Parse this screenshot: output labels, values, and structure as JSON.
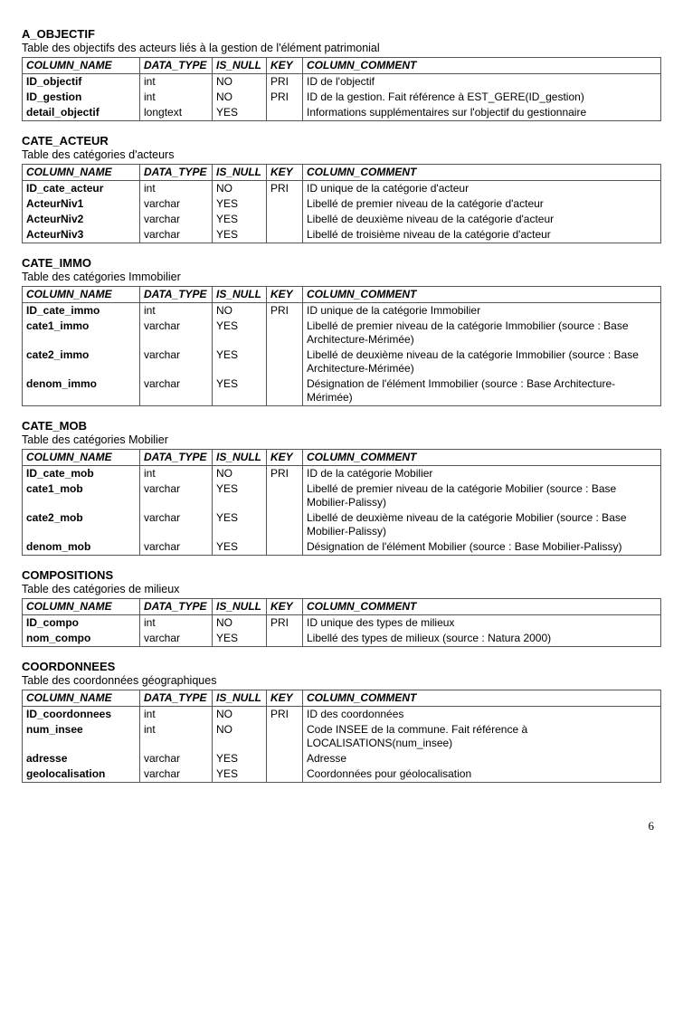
{
  "headers": {
    "col1": "COLUMN_NAME",
    "col2": "DATA_TYPE",
    "col3": "IS_NULL",
    "col4": "KEY",
    "col5": "COLUMN_COMMENT"
  },
  "sections": [
    {
      "title": "A_OBJECTIF",
      "desc": "Table des objectifs des acteurs liés à la gestion de l'élément patrimonial",
      "rows": [
        {
          "name": "ID_objectif",
          "type": "int",
          "isnull": "NO",
          "key": "PRI",
          "comment": "ID de l'objectif"
        },
        {
          "name": "ID_gestion",
          "type": "int",
          "isnull": "NO",
          "key": "PRI",
          "comment": "ID de la gestion. Fait référence à EST_GERE(ID_gestion)"
        },
        {
          "name": "detail_objectif",
          "type": "longtext",
          "isnull": "YES",
          "key": "",
          "comment": "Informations supplémentaires sur l'objectif du gestionnaire"
        }
      ]
    },
    {
      "title": "CATE_ACTEUR",
      "desc": "Table des catégories d'acteurs",
      "rows": [
        {
          "name": "ID_cate_acteur",
          "type": "int",
          "isnull": "NO",
          "key": "PRI",
          "comment": "ID unique de la catégorie d'acteur"
        },
        {
          "name": "ActeurNiv1",
          "type": "varchar",
          "isnull": "YES",
          "key": "",
          "comment": "Libellé de premier niveau de la catégorie d'acteur"
        },
        {
          "name": "ActeurNiv2",
          "type": "varchar",
          "isnull": "YES",
          "key": "",
          "comment": "Libellé de deuxième niveau de la catégorie d'acteur"
        },
        {
          "name": "ActeurNiv3",
          "type": "varchar",
          "isnull": "YES",
          "key": "",
          "comment": "Libellé de troisième niveau de la catégorie d'acteur"
        }
      ]
    },
    {
      "title": "CATE_IMMO",
      "desc": "Table des catégories Immobilier",
      "rows": [
        {
          "name": "ID_cate_immo",
          "type": "int",
          "isnull": "NO",
          "key": "PRI",
          "comment": "ID unique de la catégorie Immobilier"
        },
        {
          "name": "cate1_immo",
          "type": "varchar",
          "isnull": "YES",
          "key": "",
          "comment": "Libellé de premier niveau de la catégorie Immobilier (source : Base Architecture-Mérimée)"
        },
        {
          "name": "cate2_immo",
          "type": "varchar",
          "isnull": "YES",
          "key": "",
          "comment": "Libellé de deuxième niveau de la catégorie Immobilier (source : Base Architecture-Mérimée)"
        },
        {
          "name": "denom_immo",
          "type": "varchar",
          "isnull": "YES",
          "key": "",
          "comment": "Désignation de l'élément Immobilier (source : Base Architecture-Mérimée)"
        }
      ]
    },
    {
      "title": "CATE_MOB",
      "desc": "Table des catégories Mobilier",
      "rows": [
        {
          "name": "ID_cate_mob",
          "type": "int",
          "isnull": "NO",
          "key": "PRI",
          "comment": "ID de la catégorie Mobilier"
        },
        {
          "name": "cate1_mob",
          "type": "varchar",
          "isnull": "YES",
          "key": "",
          "comment": "Libellé de premier niveau de la catégorie Mobilier (source : Base Mobilier-Palissy)"
        },
        {
          "name": "cate2_mob",
          "type": "varchar",
          "isnull": "YES",
          "key": "",
          "comment": "Libellé de deuxième niveau de la catégorie Mobilier (source : Base Mobilier-Palissy)"
        },
        {
          "name": "denom_mob",
          "type": "varchar",
          "isnull": "YES",
          "key": "",
          "comment": "Désignation de l'élément Mobilier (source : Base Mobilier-Palissy)"
        }
      ]
    },
    {
      "title": "COMPOSITIONS",
      "desc": "Table des catégories de milieux",
      "rows": [
        {
          "name": "ID_compo",
          "type": "int",
          "isnull": "NO",
          "key": "PRI",
          "comment": "ID unique des types de milieux"
        },
        {
          "name": "nom_compo",
          "type": "varchar",
          "isnull": "YES",
          "key": "",
          "comment": "Libellé des types de milieux (source : Natura 2000)"
        }
      ]
    },
    {
      "title": "COORDONNEES",
      "desc": "Table des coordonnées géographiques",
      "rows": [
        {
          "name": "ID_coordonnees",
          "type": "int",
          "isnull": "NO",
          "key": "PRI",
          "comment": "ID des coordonnées"
        },
        {
          "name": "num_insee",
          "type": "int",
          "isnull": "NO",
          "key": "",
          "comment": "Code INSEE de la commune. Fait référence à LOCALISATIONS(num_insee)"
        },
        {
          "name": "adresse",
          "type": "varchar",
          "isnull": "YES",
          "key": "",
          "comment": "Adresse"
        },
        {
          "name": "geolocalisation",
          "type": "varchar",
          "isnull": "YES",
          "key": "",
          "comment": "Coordonnées pour géolocalisation"
        }
      ]
    }
  ],
  "page_number": "6"
}
